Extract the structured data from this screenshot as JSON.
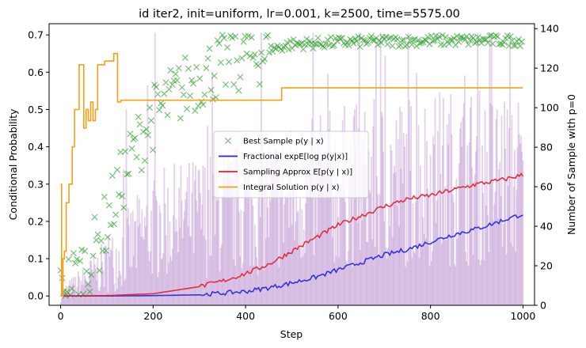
{
  "chart_data": {
    "type": "line",
    "title": "id iter2, init=uniform, lr=0.001, k=2500, time=5575.00",
    "xlabel": "Step",
    "ylabel": "Conditional Probability",
    "y2label": "Number of Sample with p=0",
    "xlim": [
      -25,
      1025
    ],
    "ylim": [
      -0.025,
      0.73
    ],
    "y2lim": [
      0,
      142.5
    ],
    "x_ticks": [
      "0",
      "200",
      "400",
      "600",
      "800",
      "1000"
    ],
    "y_ticks": [
      "0.0",
      "0.1",
      "0.2",
      "0.3",
      "0.4",
      "0.5",
      "0.6",
      "0.7"
    ],
    "y2_ticks": [
      "0",
      "20",
      "40",
      "60",
      "80",
      "100",
      "120",
      "140"
    ],
    "grid": false,
    "legend_position": "center",
    "colors": {
      "best_sample": "#2ca02c",
      "fractional": "#2222dd",
      "sampling": "#e0202e",
      "integral": "#f5a014",
      "bars": "#9b59b6",
      "y2label": "#800080"
    },
    "series": [
      {
        "name": "Best Sample $p(y \\mid x)$",
        "legend_label": "Best Sample p(y | x)",
        "style": "scatter-x",
        "trend_x": [
          0,
          20,
          40,
          60,
          80,
          100,
          120,
          140,
          160,
          180,
          200,
          250,
          300,
          350,
          400,
          450,
          500,
          600,
          700,
          800,
          1000
        ],
        "trend_y": [
          0.0,
          0.04,
          0.06,
          0.09,
          0.14,
          0.2,
          0.27,
          0.33,
          0.39,
          0.44,
          0.48,
          0.54,
          0.59,
          0.62,
          0.64,
          0.66,
          0.675,
          0.68,
          0.683,
          0.685,
          0.685
        ]
      },
      {
        "name": "Fractional exp$\\mathbb{E}[\\log p(y|x)]$",
        "legend_label": "Fractional expE[log p(y|x)]",
        "style": "line",
        "x": [
          0,
          100,
          200,
          300,
          400,
          450,
          500,
          550,
          600,
          650,
          700,
          750,
          800,
          850,
          900,
          950,
          1000
        ],
        "y": [
          0.0,
          0.0,
          0.001,
          0.003,
          0.012,
          0.022,
          0.035,
          0.05,
          0.07,
          0.09,
          0.11,
          0.125,
          0.145,
          0.165,
          0.18,
          0.2,
          0.22
        ]
      },
      {
        "name": "Sampling Approx $\\mathbb{E}[p(y \\mid x)]$",
        "legend_label": "Sampling Approx E[p(y | x)]",
        "style": "line",
        "x": [
          0,
          100,
          200,
          300,
          350,
          400,
          450,
          500,
          550,
          600,
          650,
          700,
          750,
          800,
          850,
          900,
          950,
          1000
        ],
        "y": [
          0.0,
          0.001,
          0.006,
          0.025,
          0.04,
          0.06,
          0.085,
          0.12,
          0.155,
          0.19,
          0.215,
          0.24,
          0.26,
          0.27,
          0.285,
          0.3,
          0.31,
          0.325
        ]
      },
      {
        "name": "Integral Solution $p(y \\mid x)$",
        "legend_label": "Integral Solution p(y | x)",
        "style": "step",
        "x": [
          0,
          2,
          5,
          8,
          12,
          18,
          25,
          30,
          35,
          40,
          45,
          50,
          55,
          60,
          65,
          70,
          75,
          80,
          90,
          95,
          100,
          110,
          115,
          120,
          123,
          125,
          130,
          150,
          200,
          300,
          475,
          478,
          1000
        ],
        "y": [
          0.3,
          0.0,
          0.1,
          0.12,
          0.25,
          0.3,
          0.4,
          0.5,
          0.5,
          0.62,
          0.62,
          0.45,
          0.5,
          0.47,
          0.52,
          0.47,
          0.5,
          0.62,
          0.62,
          0.63,
          0.63,
          0.63,
          0.65,
          0.65,
          0.52,
          0.52,
          0.525,
          0.525,
          0.525,
          0.525,
          0.525,
          0.558,
          0.558
        ]
      },
      {
        "name": "Number of Sample with p=0",
        "style": "bars",
        "axis": "right",
        "trend_x": [
          0,
          100,
          200,
          300,
          400,
          500,
          600,
          700,
          800,
          900,
          1000
        ],
        "trend_y": [
          5,
          20,
          40,
          45,
          50,
          55,
          60,
          62,
          65,
          65,
          65
        ]
      }
    ]
  }
}
